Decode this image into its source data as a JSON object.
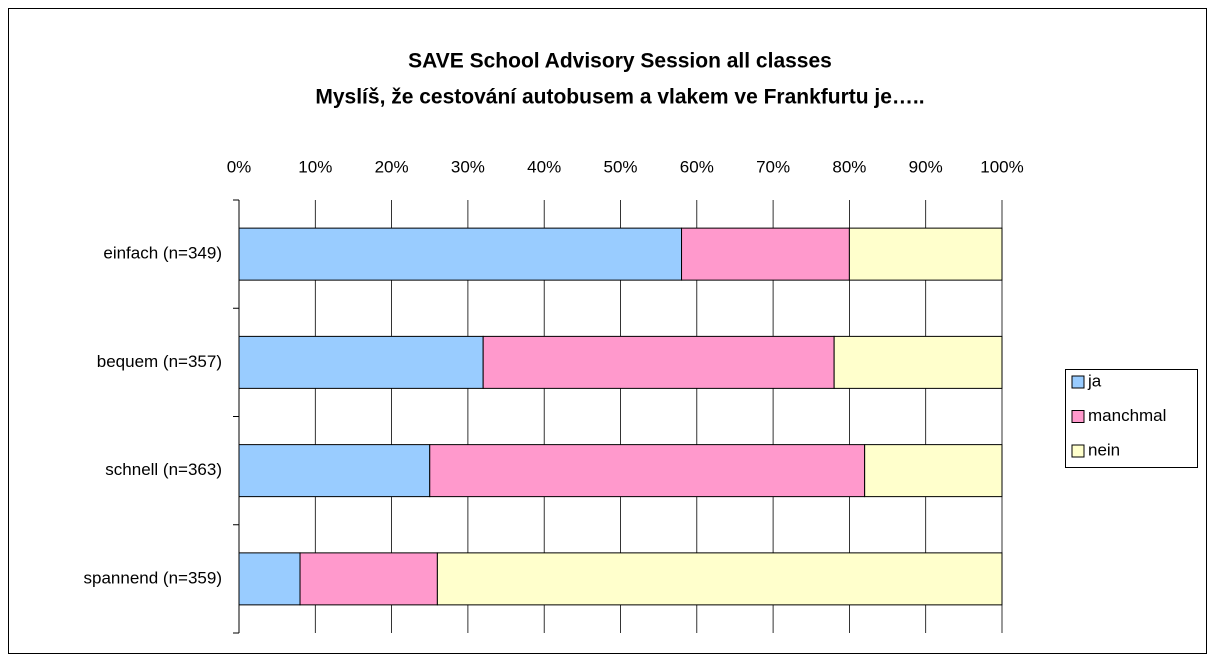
{
  "chart_data": {
    "type": "stacked_barh",
    "title": "SAVE School Advisory Session all classes",
    "subtitle": "Myslíš, že cestování autobusem a vlakem ve Frankfurtu je…..",
    "categories": [
      "einfach (n=349)",
      "bequem (n=357)",
      "schnell (n=363)",
      "spannend (n=359)"
    ],
    "series": [
      {
        "name": "ja",
        "color": "#99ccff",
        "values": [
          58,
          32,
          25,
          8
        ]
      },
      {
        "name": "manchmal",
        "color": "#ff99cc",
        "values": [
          22,
          46,
          57,
          18
        ]
      },
      {
        "name": "nein",
        "color": "#ffffcc",
        "values": [
          20,
          22,
          18,
          74
        ]
      }
    ],
    "xlim": [
      0,
      100
    ],
    "xticks": [
      {
        "value": 0,
        "label": "0%"
      },
      {
        "value": 10,
        "label": "10%"
      },
      {
        "value": 20,
        "label": "20%"
      },
      {
        "value": 30,
        "label": "30%"
      },
      {
        "value": 40,
        "label": "40%"
      },
      {
        "value": 50,
        "label": "50%"
      },
      {
        "value": 60,
        "label": "60%"
      },
      {
        "value": 70,
        "label": "70%"
      },
      {
        "value": 80,
        "label": "80%"
      },
      {
        "value": 90,
        "label": "90%"
      },
      {
        "value": 100,
        "label": "100%"
      }
    ],
    "grid": true,
    "legend": "right"
  }
}
